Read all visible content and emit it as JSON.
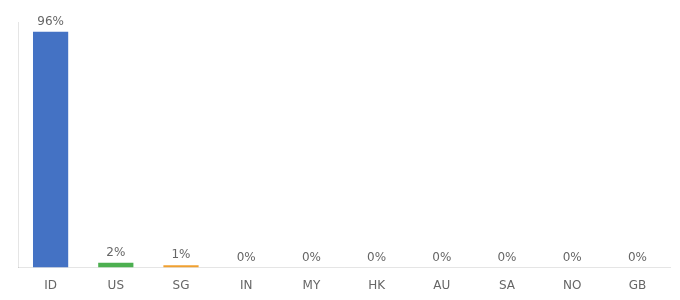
{
  "chart_data": {
    "type": "bar",
    "categories": [
      "ID",
      "US",
      "SG",
      "IN",
      "MY",
      "HK",
      "AU",
      "SA",
      "NO",
      "GB"
    ],
    "values": [
      96,
      2,
      1,
      0,
      0,
      0,
      0,
      0,
      0,
      0
    ],
    "value_labels": [
      "96%",
      "2%",
      "1%",
      "0%",
      "0%",
      "0%",
      "0%",
      "0%",
      "0%",
      "0%"
    ],
    "colors": [
      "#4472c4",
      "#4caf50",
      "#f0a030",
      "#4472c4",
      "#4472c4",
      "#4472c4",
      "#4472c4",
      "#4472c4",
      "#4472c4",
      "#4472c4"
    ],
    "ylim": [
      0,
      100
    ],
    "grid": false,
    "data_labels": true,
    "tick_labels": "x"
  }
}
